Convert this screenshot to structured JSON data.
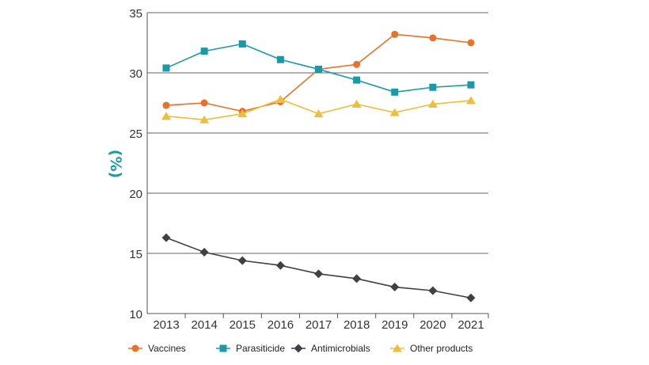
{
  "chart_data": {
    "type": "line",
    "title": "",
    "xlabel": "",
    "ylabel": "(%)",
    "x": [
      "2013",
      "2014",
      "2015",
      "2016",
      "2017",
      "2018",
      "2019",
      "2020",
      "2021"
    ],
    "yticks": [
      "10",
      "15",
      "20",
      "25",
      "30",
      "35"
    ],
    "ylim": [
      10,
      35
    ],
    "grid": "horizontal",
    "legend_position": "bottom",
    "series": [
      {
        "name": "Vaccines",
        "marker": "circle",
        "color": "#e8722a",
        "values": [
          27.3,
          27.5,
          26.8,
          27.6,
          30.3,
          30.7,
          33.2,
          32.9,
          32.5
        ]
      },
      {
        "name": "Parasiticide",
        "marker": "square",
        "color": "#1a9aa6",
        "values": [
          30.4,
          31.8,
          32.4,
          31.1,
          30.3,
          29.4,
          28.4,
          28.8,
          29.0
        ]
      },
      {
        "name": "Antimicrobials",
        "marker": "diamond",
        "color": "#3f3f46",
        "values": [
          16.3,
          15.1,
          14.4,
          14.0,
          13.3,
          12.9,
          12.2,
          11.9,
          11.3
        ]
      },
      {
        "name": "Other products",
        "marker": "triangle",
        "color": "#f0bd3a",
        "values": [
          26.4,
          26.1,
          26.6,
          27.8,
          26.6,
          27.4,
          26.7,
          27.4,
          27.7
        ]
      }
    ]
  }
}
